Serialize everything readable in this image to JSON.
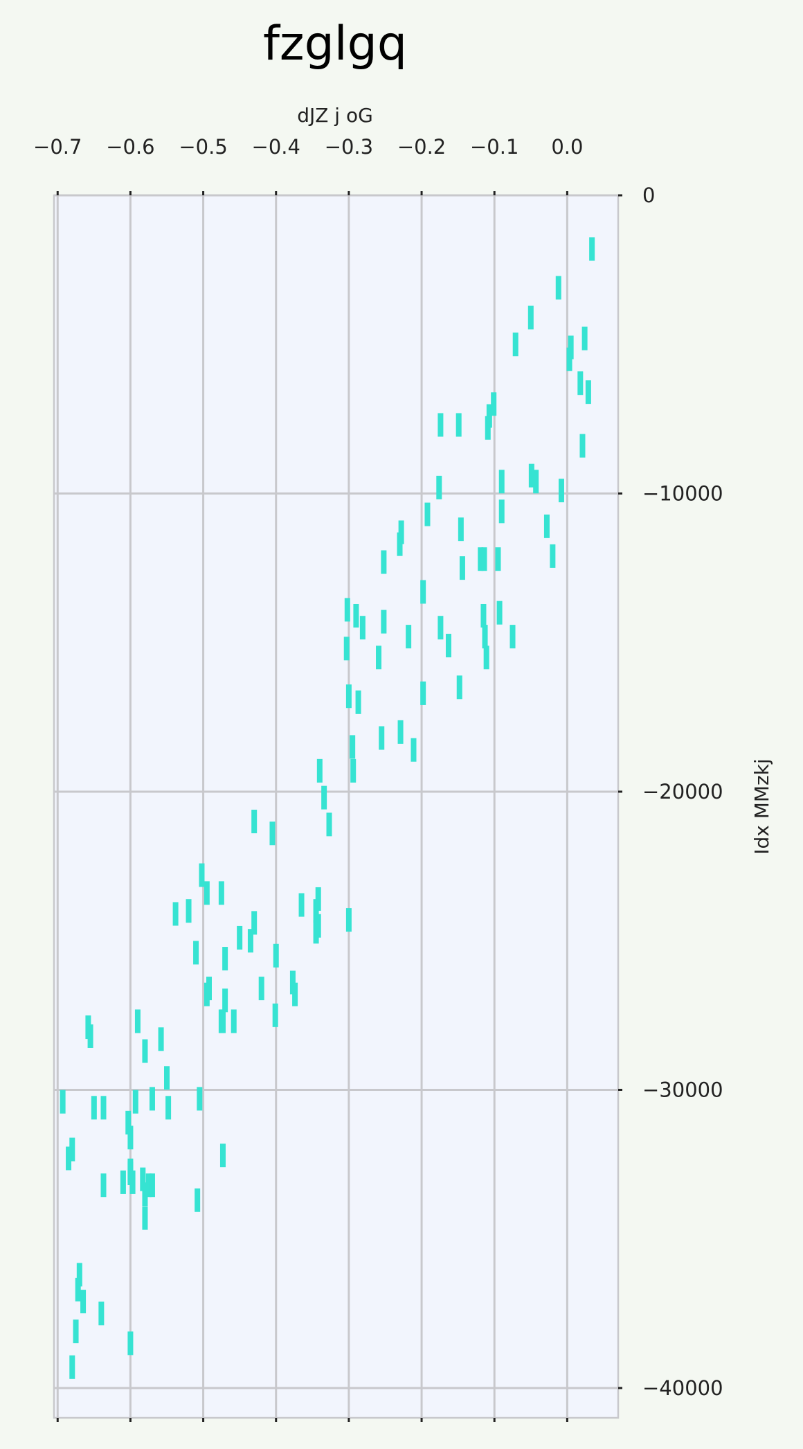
{
  "chart_data": {
    "type": "scatter",
    "title": "fzglgq",
    "xlabel": "dJZ j oG",
    "ylabel": "Idx MMzkj",
    "xlim": [
      -0.705,
      0.07
    ],
    "ylim": [
      -41000,
      0
    ],
    "x_ticks": [
      -0.7,
      -0.6,
      -0.5,
      -0.4,
      -0.3,
      -0.2,
      -0.1,
      0.0
    ],
    "x_tick_labels": [
      "−0.7",
      "−0.6",
      "−0.5",
      "−0.4",
      "−0.3",
      "−0.2",
      "−0.1",
      "0.0"
    ],
    "y_ticks": [
      0,
      -10000,
      -20000,
      -30000,
      -40000
    ],
    "y_tick_labels": [
      "0",
      "−10000",
      "−20000",
      "−30000",
      "−40000"
    ],
    "x_axis_position": "top",
    "y_axis_position": "right",
    "grid": true,
    "marker": "vertical-bar",
    "colors": {
      "marker": "#36e3d2",
      "plot_bg": "#f2f5fd",
      "page_bg": "#f4f8f2",
      "grid": "#c8c8cc",
      "text": "#222222"
    },
    "series": [
      {
        "name": "points",
        "x": [
          0.034,
          -0.012,
          -0.05,
          -0.071,
          0.024,
          0.005,
          0.003,
          0.018,
          0.029,
          -0.101,
          -0.107,
          -0.109,
          -0.174,
          -0.149,
          0.021,
          -0.049,
          -0.043,
          -0.09,
          -0.09,
          -0.008,
          -0.176,
          -0.192,
          -0.028,
          -0.228,
          -0.23,
          -0.146,
          -0.119,
          -0.114,
          -0.095,
          -0.02,
          -0.252,
          -0.144,
          -0.198,
          -0.302,
          -0.115,
          -0.093,
          -0.29,
          -0.281,
          -0.252,
          -0.174,
          -0.218,
          -0.113,
          -0.075,
          -0.303,
          -0.259,
          -0.163,
          -0.111,
          -0.198,
          -0.148,
          -0.287,
          -0.3,
          -0.229,
          -0.255,
          -0.211,
          -0.295,
          -0.294,
          -0.34,
          -0.334,
          -0.327,
          -0.43,
          -0.405,
          -0.502,
          -0.475,
          -0.495,
          -0.342,
          -0.365,
          -0.3,
          -0.52,
          -0.538,
          -0.345,
          -0.342,
          -0.43,
          -0.345,
          -0.45,
          -0.435,
          -0.51,
          -0.47,
          -0.4,
          -0.492,
          -0.377,
          -0.42,
          -0.374,
          -0.495,
          -0.47,
          -0.475,
          -0.401,
          -0.473,
          -0.458,
          -0.59,
          -0.558,
          -0.658,
          -0.655,
          -0.58,
          -0.55,
          -0.693,
          -0.548,
          -0.593,
          -0.65,
          -0.637,
          -0.505,
          -0.57,
          -0.603,
          -0.6,
          -0.473,
          -0.68,
          -0.685,
          -0.6,
          -0.597,
          -0.6,
          -0.61,
          -0.637,
          -0.583,
          -0.575,
          -0.58,
          -0.57,
          -0.508,
          -0.58,
          -0.67,
          -0.672,
          -0.64,
          -0.665,
          -0.675,
          -0.6,
          -0.68
        ],
        "y": [
          -1800,
          -3100,
          -4100,
          -5000,
          -4800,
          -5100,
          -5500,
          -6300,
          -6600,
          -7000,
          -7400,
          -7800,
          -7700,
          -7700,
          -8400,
          -9400,
          -9600,
          -9600,
          -10600,
          -9900,
          -9800,
          -10700,
          -11100,
          -11300,
          -11700,
          -11200,
          -12200,
          -12200,
          -12200,
          -12100,
          -12300,
          -12500,
          -13300,
          -13900,
          -14100,
          -14000,
          -14100,
          -14500,
          -14300,
          -14500,
          -14800,
          -14800,
          -14800,
          -15200,
          -15500,
          -15100,
          -15500,
          -16700,
          -16500,
          -17000,
          -16800,
          -18000,
          -18200,
          -18600,
          -18500,
          -19300,
          -19300,
          -20200,
          -21100,
          -21000,
          -21400,
          -22800,
          -23400,
          -23400,
          -23600,
          -23800,
          -24300,
          -24000,
          -24100,
          -24000,
          -24500,
          -24400,
          -24700,
          -24900,
          -25000,
          -25400,
          -25600,
          -25500,
          -26600,
          -26400,
          -26600,
          -26800,
          -26800,
          -27000,
          -27700,
          -27500,
          -27700,
          -27700,
          -27700,
          -28300,
          -27900,
          -28200,
          -28700,
          -29600,
          -30400,
          -30600,
          -30400,
          -30600,
          -30600,
          -30300,
          -30300,
          -31100,
          -31600,
          -32200,
          -32000,
          -32300,
          -32700,
          -33100,
          -32800,
          -33100,
          -33200,
          -33000,
          -33200,
          -33500,
          -33200,
          -33700,
          -34300,
          -36200,
          -36700,
          -37500,
          -37100,
          -38100,
          -38500,
          -39300
        ]
      }
    ]
  }
}
